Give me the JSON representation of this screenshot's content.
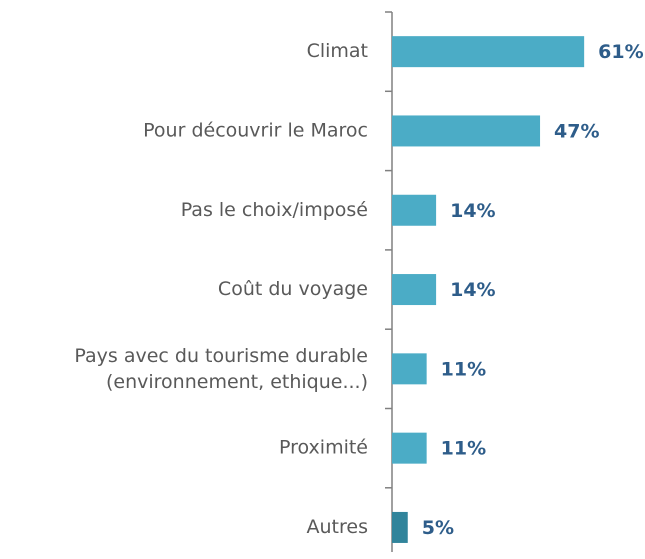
{
  "chart_data": {
    "type": "barh",
    "categories": [
      "Climat",
      "Pour découvrir le Maroc",
      "Pas le choix/imposé",
      "Coût du voyage",
      "Pays avec du tourisme durable\n(environnement, ethique...)",
      "Proximité",
      "Autres"
    ],
    "values": [
      61,
      47,
      14,
      14,
      11,
      11,
      5
    ],
    "value_labels": [
      "61%",
      "47%",
      "14%",
      "14%",
      "11%",
      "11%",
      "5%"
    ],
    "colors": [
      "#4bacc6",
      "#4bacc6",
      "#4bacc6",
      "#4bacc6",
      "#4bacc6",
      "#4bacc6",
      "#31849b"
    ]
  }
}
